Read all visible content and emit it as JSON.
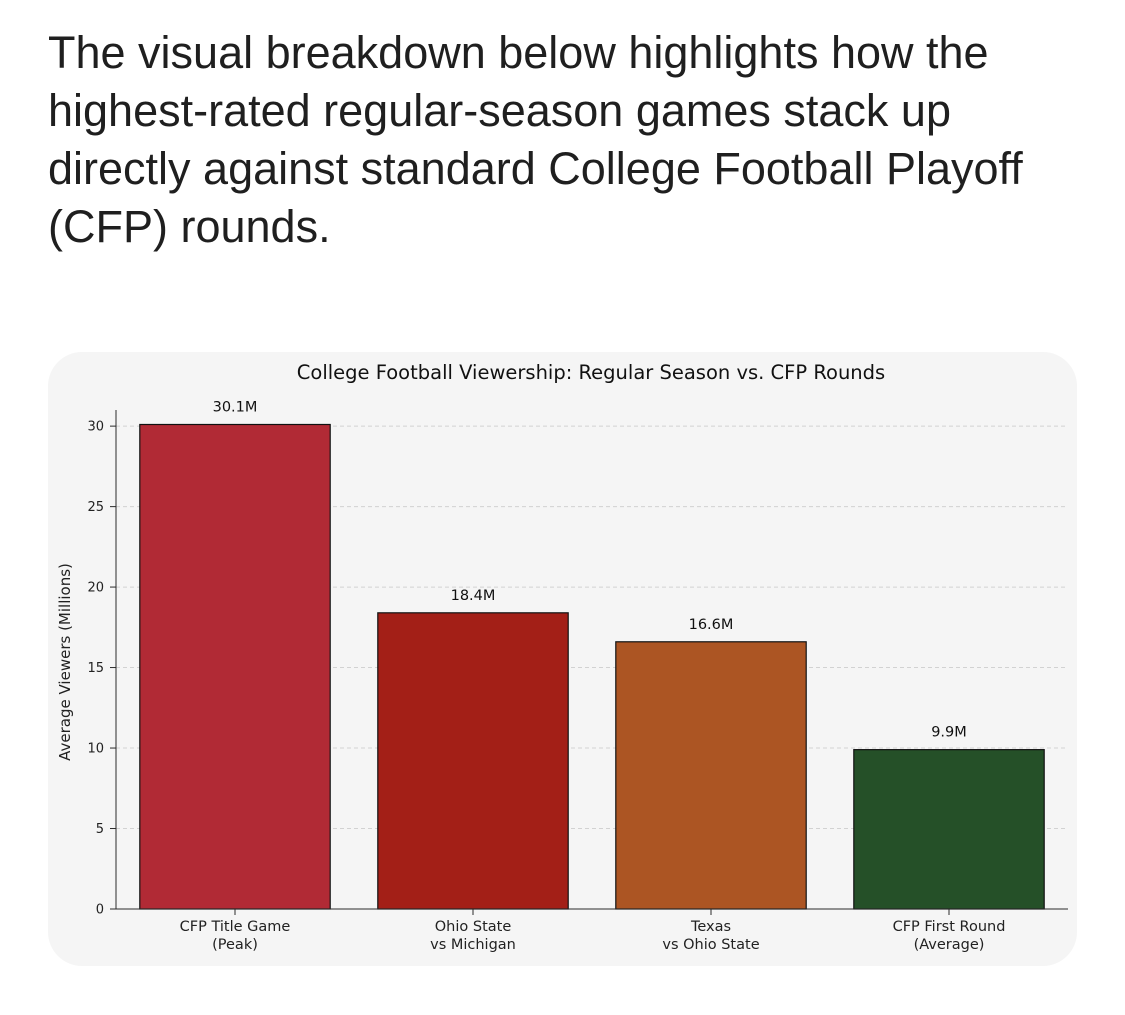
{
  "intro_text": "The visual breakdown below highlights how the highest-rated regular-season games stack up directly against standard College Football Playoff (CFP) rounds.",
  "chart_data": {
    "type": "bar",
    "title": "College Football Viewership: Regular Season vs. CFP Rounds",
    "xlabel": "",
    "ylabel": "Average Viewers (Millions)",
    "ylim": [
      0,
      31
    ],
    "yticks": [
      0,
      5,
      10,
      15,
      20,
      25,
      30
    ],
    "grid": true,
    "categories": [
      [
        "CFP Title Game",
        "(Peak)"
      ],
      [
        "Ohio State",
        "vs Michigan"
      ],
      [
        "Texas",
        "vs Ohio State"
      ],
      [
        "CFP First Round",
        "(Average)"
      ]
    ],
    "values": [
      30.1,
      18.4,
      16.6,
      9.9
    ],
    "value_labels": [
      "30.1M",
      "18.4M",
      "16.6M",
      "9.9M"
    ],
    "colors": [
      "#b12a35",
      "#a31f17",
      "#ac5523",
      "#255028"
    ]
  }
}
